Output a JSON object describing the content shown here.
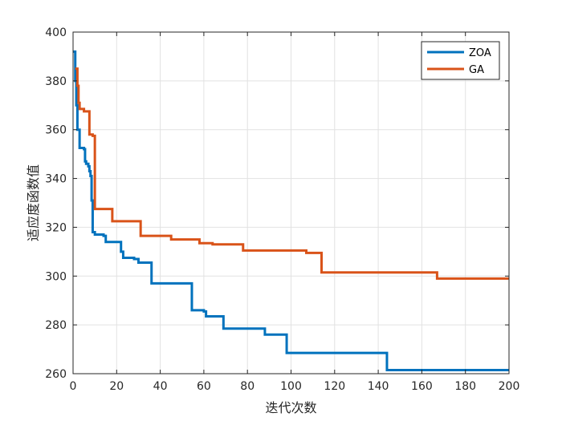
{
  "chart_data": {
    "type": "line",
    "title": "",
    "xlabel": "迭代次数",
    "ylabel": "适应度函数值",
    "xlim": [
      0,
      200
    ],
    "ylim": [
      260,
      400
    ],
    "xticks": [
      0,
      20,
      40,
      60,
      80,
      100,
      120,
      140,
      160,
      180,
      200
    ],
    "yticks": [
      260,
      280,
      300,
      320,
      340,
      360,
      380,
      400
    ],
    "grid": true,
    "legend_position": "top-right",
    "step": true,
    "series": [
      {
        "name": "ZOA",
        "color": "#0072BD",
        "points": [
          [
            0,
            392
          ],
          [
            1,
            380
          ],
          [
            1.5,
            370
          ],
          [
            2,
            360
          ],
          [
            3,
            352.5
          ],
          [
            5,
            352
          ],
          [
            5.5,
            347
          ],
          [
            6,
            346
          ],
          [
            7,
            345
          ],
          [
            7.5,
            343
          ],
          [
            8,
            341
          ],
          [
            8.5,
            331
          ],
          [
            9,
            318
          ],
          [
            10,
            317
          ],
          [
            14,
            316.5
          ],
          [
            15,
            314
          ],
          [
            21,
            314
          ],
          [
            22,
            310
          ],
          [
            23,
            307.5
          ],
          [
            28,
            307
          ],
          [
            30,
            305.5
          ],
          [
            35,
            305.5
          ],
          [
            36,
            297
          ],
          [
            54,
            297
          ],
          [
            54.5,
            286
          ],
          [
            60,
            285.5
          ],
          [
            61,
            283.5
          ],
          [
            68,
            283.5
          ],
          [
            69,
            278.5
          ],
          [
            87,
            278.5
          ],
          [
            88,
            276
          ],
          [
            97,
            276
          ],
          [
            98,
            268.5
          ],
          [
            143,
            268.5
          ],
          [
            144,
            261.5
          ],
          [
            200,
            261.5
          ]
        ]
      },
      {
        "name": "GA",
        "color": "#D95319",
        "points": [
          [
            1,
            385
          ],
          [
            2,
            378
          ],
          [
            2.5,
            371
          ],
          [
            3,
            368.5
          ],
          [
            5,
            367.5
          ],
          [
            7,
            367.5
          ],
          [
            7.5,
            358
          ],
          [
            9,
            357.5
          ],
          [
            10,
            327.5
          ],
          [
            17,
            327.5
          ],
          [
            18,
            322.5
          ],
          [
            30,
            322.5
          ],
          [
            31,
            316.5
          ],
          [
            44,
            316.5
          ],
          [
            45,
            315
          ],
          [
            57,
            315
          ],
          [
            58,
            313.5
          ],
          [
            63,
            313.5
          ],
          [
            64,
            313
          ],
          [
            77,
            313
          ],
          [
            78,
            310.5
          ],
          [
            106,
            310.5
          ],
          [
            107,
            309.5
          ],
          [
            113,
            309.5
          ],
          [
            114,
            301.5
          ],
          [
            166,
            301.5
          ],
          [
            167,
            299
          ],
          [
            200,
            299
          ]
        ]
      }
    ]
  }
}
